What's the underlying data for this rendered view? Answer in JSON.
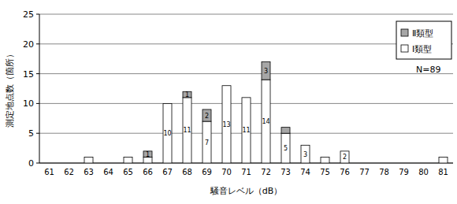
{
  "chart_data": {
    "type": "bar",
    "stacked": true,
    "x_label": "騒音レベル（dB）",
    "y_label": "測定地点数（箇所）",
    "annotation": "N=89",
    "categories": [
      "61",
      "62",
      "63",
      "64",
      "65",
      "66",
      "67",
      "68",
      "69",
      "70",
      "71",
      "72",
      "73",
      "74",
      "75",
      "76",
      "77",
      "78",
      "79",
      "80",
      "81"
    ],
    "series": [
      {
        "name": "Ⅰ類型",
        "color": "#ffffff",
        "values": [
          0,
          0,
          1,
          0,
          1,
          1,
          10,
          11,
          7,
          13,
          11,
          14,
          5,
          3,
          1,
          2,
          0,
          0,
          0,
          0,
          1
        ],
        "value_labels": [
          null,
          null,
          null,
          null,
          null,
          null,
          "10",
          "11",
          "7",
          "13",
          "11",
          "14",
          "5",
          "3",
          null,
          "2",
          null,
          null,
          null,
          null,
          null
        ]
      },
      {
        "name": "Ⅱ類型",
        "color": "#a6a6a6",
        "values": [
          0,
          0,
          0,
          0,
          0,
          1,
          0,
          1,
          2,
          0,
          0,
          3,
          1,
          0,
          0,
          0,
          0,
          0,
          0,
          0,
          0
        ],
        "value_labels": [
          null,
          null,
          null,
          null,
          null,
          "1",
          null,
          "1",
          "2",
          null,
          null,
          "3",
          null,
          null,
          null,
          null,
          null,
          null,
          null,
          null,
          null
        ]
      }
    ],
    "ylim": [
      0,
      25
    ],
    "yticks": [
      0,
      5,
      10,
      15,
      20,
      25
    ],
    "grid": true,
    "legend": "top-right",
    "data_labels": true
  }
}
